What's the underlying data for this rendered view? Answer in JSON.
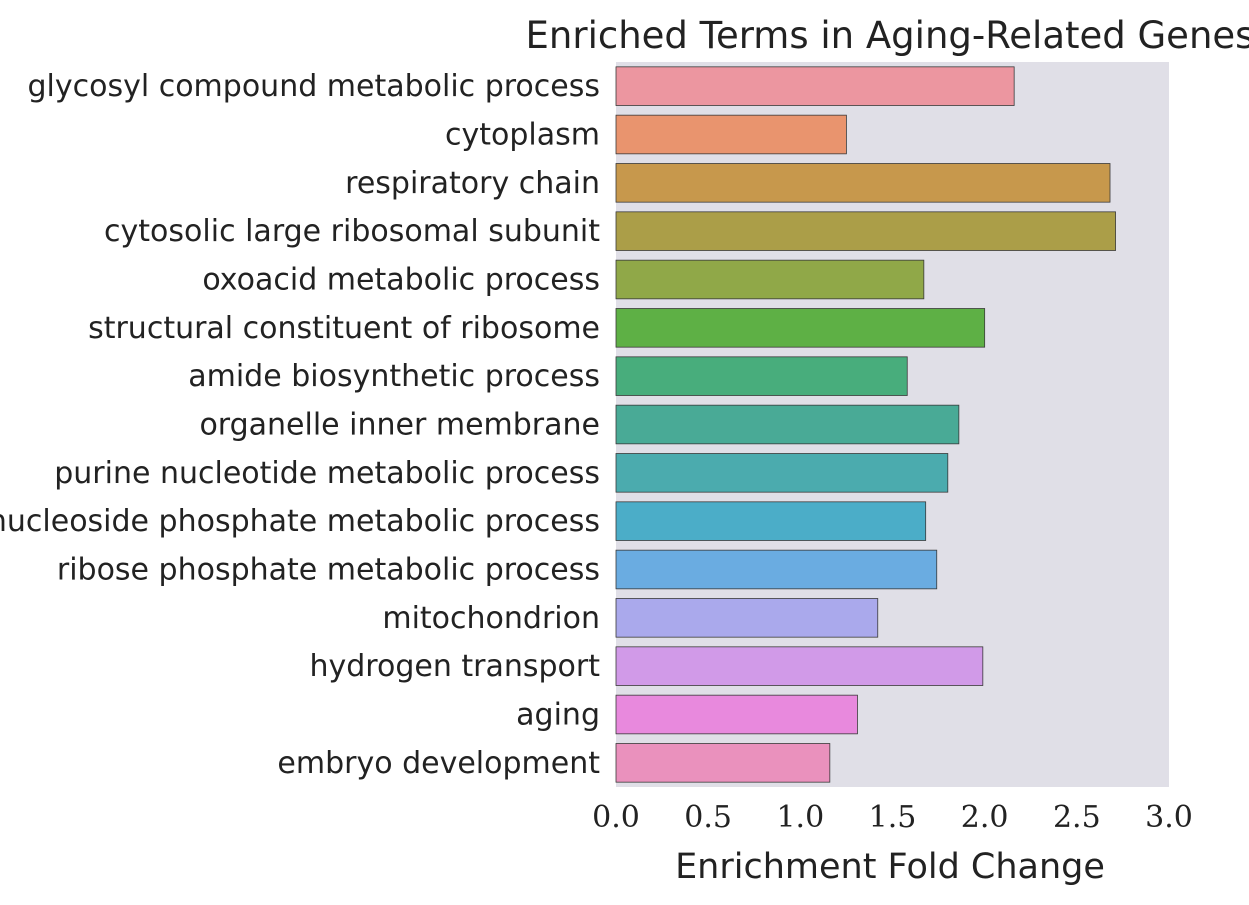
{
  "chart_data": {
    "type": "bar",
    "orientation": "horizontal",
    "title": "Enriched Terms in Aging-Related Genes",
    "xlabel": "Enrichment Fold Change",
    "ylabel": "",
    "xlim": [
      0,
      3.0
    ],
    "xticks": [
      "0.0",
      "0.5",
      "1.0",
      "1.5",
      "2.0",
      "2.5",
      "3.0"
    ],
    "grid": false,
    "legend": "none",
    "background": "#e0dfe7",
    "categories": [
      "glycosyl compound metabolic process",
      "cytoplasm",
      "respiratory chain",
      "cytosolic large ribosomal subunit",
      "oxoacid metabolic process",
      "structural constituent of ribosome",
      "amide biosynthetic process",
      "organelle inner membrane",
      "purine nucleotide metabolic process",
      "nucleoside phosphate metabolic process",
      "ribose phosphate metabolic process",
      "mitochondrion",
      "hydrogen transport",
      "aging",
      "embryo development"
    ],
    "values": [
      2.16,
      1.25,
      2.68,
      2.71,
      1.67,
      2.0,
      1.58,
      1.86,
      1.8,
      1.68,
      1.74,
      1.42,
      1.99,
      1.31,
      1.16
    ],
    "colors": [
      "#ec96a0",
      "#e9946e",
      "#c7984c",
      "#ab9e48",
      "#90a848",
      "#5eb045",
      "#48ad7c",
      "#49aa96",
      "#4babae",
      "#4badc8",
      "#6aace1",
      "#aaa9ec",
      "#d19ae8",
      "#e889dd",
      "#ea91bd"
    ]
  }
}
